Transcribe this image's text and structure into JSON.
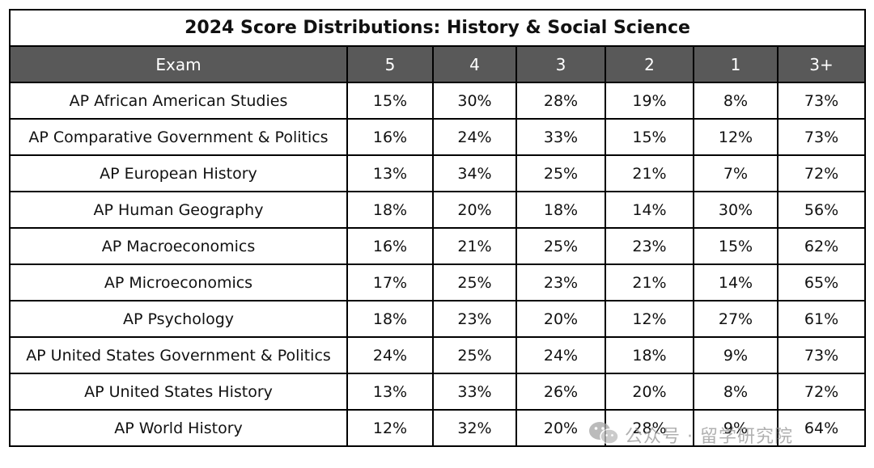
{
  "title": "2024 Score Distributions: History & Social Science",
  "columns": [
    "Exam",
    "5",
    "4",
    "3",
    "2",
    "1",
    "3+"
  ],
  "rows": [
    [
      "AP African American Studies",
      "15%",
      "30%",
      "28%",
      "19%",
      "8%",
      "73%"
    ],
    [
      "AP Comparative Government & Politics",
      "16%",
      "24%",
      "33%",
      "15%",
      "12%",
      "73%"
    ],
    [
      "AP European History",
      "13%",
      "34%",
      "25%",
      "21%",
      "7%",
      "72%"
    ],
    [
      "AP Human Geography",
      "18%",
      "20%",
      "18%",
      "14%",
      "30%",
      "56%"
    ],
    [
      "AP Macroeconomics",
      "16%",
      "21%",
      "25%",
      "23%",
      "15%",
      "62%"
    ],
    [
      "AP Microeconomics",
      "17%",
      "25%",
      "23%",
      "21%",
      "14%",
      "65%"
    ],
    [
      "AP Psychology",
      "18%",
      "23%",
      "20%",
      "12%",
      "27%",
      "61%"
    ],
    [
      "AP United States Government & Politics",
      "24%",
      "25%",
      "24%",
      "18%",
      "9%",
      "73%"
    ],
    [
      "AP United States History",
      "13%",
      "33%",
      "26%",
      "20%",
      "8%",
      "72%"
    ],
    [
      "AP World History",
      "12%",
      "32%",
      "20%",
      "28%",
      "9%",
      "64%"
    ]
  ],
  "watermark": {
    "icon": "wechat-icon",
    "text": "公众号 · 留学研究院"
  }
}
